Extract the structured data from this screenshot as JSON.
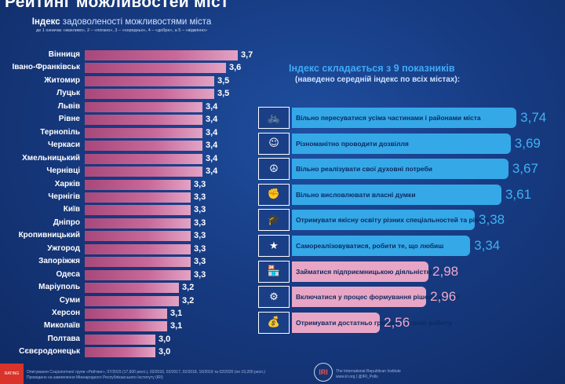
{
  "header": {
    "title": "Рейтинг можливостей міст"
  },
  "left_panel": {
    "heading_bold": "Індекс",
    "heading_rest": " задоволеності можливостями міста",
    "scale_note": "де 1 означає «жахливо», 2 – «погано», 3 – «середньо», 4 – «добре», а 5 – «відмінно»"
  },
  "right_panel": {
    "title": "Індекс складається з 9 показників",
    "subtitle": "(наведено середній індекс по всіх містах):"
  },
  "footer": {
    "text_line1": "Опитування Соціологічної групи «Рейтинг», 07/2015 (17,600 респ.), 02/2016, 02/2017, 02/2018, 10/2019 та 02/2020 (по 19,200 респ.)",
    "text_line2": "Проведено на замовлення Міжнародного Республіканського Інституту (IRI)",
    "logo_text": "RATING",
    "iri_text_line1": "The International Republican Institute",
    "iri_text_line2": "www.iri.org | @IRI_Polls",
    "iri_logo": "IRI"
  },
  "chart_data": [
    {
      "type": "bar",
      "orientation": "horizontal",
      "categories": [
        "Вінниця",
        "Івано-Франківськ",
        "Житомир",
        "Луцьк",
        "Львів",
        "Рівне",
        "Тернопіль",
        "Черкаси",
        "Хмельницький",
        "Чернівці",
        "Харків",
        "Чернігів",
        "Київ",
        "Дніпро",
        "Кропивницький",
        "Ужгород",
        "Запоріжжя",
        "Одеса",
        "Маріуполь",
        "Суми",
        "Херсон",
        "Миколаїв",
        "Полтава",
        "Сєвєродонецьк"
      ],
      "values": [
        3.7,
        3.6,
        3.5,
        3.5,
        3.4,
        3.4,
        3.4,
        3.4,
        3.4,
        3.4,
        3.3,
        3.3,
        3.3,
        3.3,
        3.3,
        3.3,
        3.3,
        3.3,
        3.2,
        3.2,
        3.1,
        3.1,
        3.0,
        3.0
      ],
      "labels": [
        "3,7",
        "3,6",
        "3,5",
        "3,5",
        "3,4",
        "3,4",
        "3,4",
        "3,4",
        "3,4",
        "3,4",
        "3,3",
        "3,3",
        "3,3",
        "3,3",
        "3,3",
        "3,3",
        "3,3",
        "3,3",
        "3,2",
        "3,2",
        "3,1",
        "3,1",
        "3,0",
        "3,0"
      ],
      "colors": {
        "bar": "#c0608f"
      }
    },
    {
      "type": "bar",
      "orientation": "horizontal",
      "categories": [
        "Вільно пересуватися усіма частинами і районами міста",
        "Різноманітно проводити дозвілля",
        "Вільно реалізувати свої духовні потреби",
        "Вільно висловлювати власні думки",
        "Отримувати якісну освіту різних спеціальностей та рівнів",
        "Самореалізовуватися, робити те, що любиш",
        "Займатися підприємницькою діяльністю",
        "Включатися у процес формування рішень у місті",
        "Отримувати достатньо грошей за свою роботу"
      ],
      "values": [
        3.74,
        3.69,
        3.67,
        3.61,
        3.38,
        3.34,
        2.98,
        2.96,
        2.56
      ],
      "labels": [
        "3,74",
        "3,69",
        "3,67",
        "3,61",
        "3,38",
        "3,34",
        "2,98",
        "2,96",
        "2,56"
      ],
      "icons": [
        "transport-icon",
        "leisure-icon",
        "spiritual-icon",
        "speech-icon",
        "education-icon",
        "self-realization-icon",
        "business-icon",
        "decision-making-icon",
        "money-icon"
      ],
      "colors": {
        "high": "#35a8e8",
        "low": "#e8a6c6",
        "high_text": "#3fb2f2",
        "low_text": "#f0a8cc"
      }
    }
  ]
}
